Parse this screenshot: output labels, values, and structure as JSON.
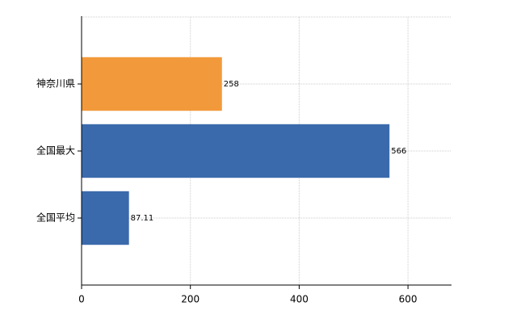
{
  "chart_data": {
    "type": "bar",
    "orientation": "horizontal",
    "categories": [
      "神奈川県",
      "全国最大",
      "全国平均"
    ],
    "values": [
      258,
      566,
      87.11
    ],
    "colors": [
      "#f29a3b",
      "#3a6aab",
      "#3a6aab"
    ],
    "xlim": [
      0,
      680
    ],
    "xticks": [
      0,
      200,
      400,
      600
    ],
    "grid": true
  }
}
